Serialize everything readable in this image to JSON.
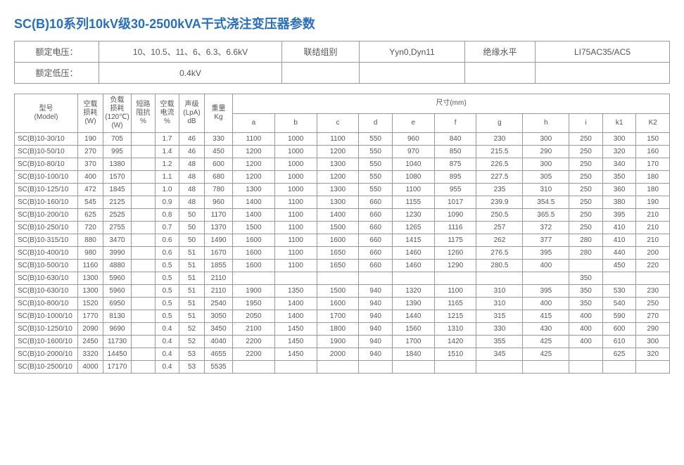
{
  "title": "SC(B)10系列10kV级30-2500kVA干式浇注变压器参数",
  "header": {
    "r1c1": "额定电压：",
    "r1c2": "10、10.5、11、6、6.3、6.6kV",
    "r1c3": "联结组别",
    "r1c4": "Yyn0,Dyn11",
    "r1c5": "绝缘水平",
    "r1c6": "LI75AC35/AC5",
    "r2c1": "额定低压：",
    "r2c2": "0.4kV"
  },
  "columns": {
    "model": "型号\n(Model)",
    "noload": "空载\n损耗\n(W)",
    "load": "负载\n损耗\n(120℃)\n(W)",
    "impedance": "短路\n阻抗\n%",
    "noloadcur": "空载\n电流\n%",
    "noise": "声级\n(LpA)\ndB",
    "weight": "重量\nKg",
    "dim_group": "尺寸(mm)",
    "a": "a",
    "b": "b",
    "c": "c",
    "d": "d",
    "e": "e",
    "f": "f",
    "g": "g",
    "h": "h",
    "i": "i",
    "k1": "k1",
    "k2": "K2"
  },
  "rows": [
    [
      "SC(B)10-30/10",
      "190",
      "705",
      "",
      "1.7",
      "46",
      "330",
      "1100",
      "1000",
      "1100",
      "550",
      "960",
      "840",
      "230",
      "300",
      "250",
      "300",
      "150"
    ],
    [
      "SC(B)10-50/10",
      "270",
      "995",
      "",
      "1.4",
      "46",
      "450",
      "1200",
      "1000",
      "1200",
      "550",
      "970",
      "850",
      "215.5",
      "290",
      "250",
      "320",
      "160"
    ],
    [
      "SC(B)10-80/10",
      "370",
      "1380",
      "",
      "1.2",
      "48",
      "600",
      "1200",
      "1000",
      "1300",
      "550",
      "1040",
      "875",
      "226.5",
      "300",
      "250",
      "340",
      "170"
    ],
    [
      "SC(B)10-100/10",
      "400",
      "1570",
      "",
      "1.1",
      "48",
      "680",
      "1200",
      "1000",
      "1200",
      "550",
      "1080",
      "895",
      "227.5",
      "305",
      "250",
      "350",
      "180"
    ],
    [
      "SC(B)10-125/10",
      "472",
      "1845",
      "",
      "1.0",
      "48",
      "780",
      "1300",
      "1000",
      "1300",
      "550",
      "1100",
      "955",
      "235",
      "310",
      "250",
      "360",
      "180"
    ],
    [
      "SC(B)10-160/10",
      "545",
      "2125",
      "",
      "0.9",
      "48",
      "960",
      "1400",
      "1100",
      "1300",
      "660",
      "1155",
      "1017",
      "239.9",
      "354.5",
      "250",
      "380",
      "190"
    ],
    [
      "SC(B)10-200/10",
      "625",
      "2525",
      "",
      "0.8",
      "50",
      "1170",
      "1400",
      "1100",
      "1400",
      "660",
      "1230",
      "1090",
      "250.5",
      "365.5",
      "250",
      "395",
      "210"
    ],
    [
      "SC(B)10-250/10",
      "720",
      "2755",
      "",
      "0.7",
      "50",
      "1370",
      "1500",
      "1100",
      "1500",
      "660",
      "1265",
      "1116",
      "257",
      "372",
      "250",
      "410",
      "210"
    ],
    [
      "SC(B)10-315/10",
      "880",
      "3470",
      "",
      "0.6",
      "50",
      "1490",
      "1600",
      "1100",
      "1600",
      "660",
      "1415",
      "1175",
      "262",
      "377",
      "280",
      "410",
      "210"
    ],
    [
      "SC(B)10-400/10",
      "980",
      "3990",
      "",
      "0.6",
      "51",
      "1670",
      "1600",
      "1100",
      "1650",
      "660",
      "1460",
      "1260",
      "276.5",
      "395",
      "280",
      "440",
      "200"
    ],
    [
      "SC(B)10-500/10",
      "1160",
      "4880",
      "",
      "0.5",
      "51",
      "1855",
      "1600",
      "1100",
      "1650",
      "660",
      "1460",
      "1290",
      "280.5",
      "400",
      "",
      "450",
      "220"
    ],
    [
      "SC(B)10-630/10",
      "1300",
      "5960",
      "",
      "0.5",
      "51",
      "2110",
      "",
      "",
      "",
      "",
      "",
      "",
      "",
      "",
      "350",
      "",
      ""
    ],
    [
      "SC(B)10-630/10",
      "1300",
      "5960",
      "",
      "0.5",
      "51",
      "2110",
      "1900",
      "1350",
      "1500",
      "940",
      "1320",
      "1100",
      "310",
      "395",
      "350",
      "530",
      "230"
    ],
    [
      "SC(B)10-800/10",
      "1520",
      "6950",
      "",
      "0.5",
      "51",
      "2540",
      "1950",
      "1400",
      "1600",
      "940",
      "1390",
      "1165",
      "310",
      "400",
      "350",
      "540",
      "250"
    ],
    [
      "SC(B)10-1000/10",
      "1770",
      "8130",
      "",
      "0.5",
      "51",
      "3050",
      "2050",
      "1400",
      "1700",
      "940",
      "1440",
      "1215",
      "315",
      "415",
      "400",
      "590",
      "270"
    ],
    [
      "SC(B)10-1250/10",
      "2090",
      "9690",
      "",
      "0.4",
      "52",
      "3450",
      "2100",
      "1450",
      "1800",
      "940",
      "1560",
      "1310",
      "330",
      "430",
      "400",
      "600",
      "290"
    ],
    [
      "SC(B)10-1600/10",
      "2450",
      "11730",
      "",
      "0.4",
      "52",
      "4040",
      "2200",
      "1450",
      "1900",
      "940",
      "1700",
      "1420",
      "355",
      "425",
      "400",
      "610",
      "300"
    ],
    [
      "SC(B)10-2000/10",
      "3320",
      "14450",
      "",
      "0.4",
      "53",
      "4655",
      "2200",
      "1450",
      "2000",
      "940",
      "1840",
      "1510",
      "345",
      "425",
      "",
      "625",
      "320"
    ],
    [
      "SC(B)10-2500/10",
      "4000",
      "17170",
      "",
      "0.4",
      "53",
      "5535",
      "",
      "",
      "",
      "",
      "",
      "",
      "",
      "",
      "",
      "",
      ""
    ]
  ],
  "styling": {
    "title_color": "#2a6fb8",
    "title_fontsize": 18,
    "border_color": "#999999",
    "text_color": "#555555",
    "cell_fontsize": 10,
    "header_fontsize": 12,
    "background": "#ffffff"
  }
}
